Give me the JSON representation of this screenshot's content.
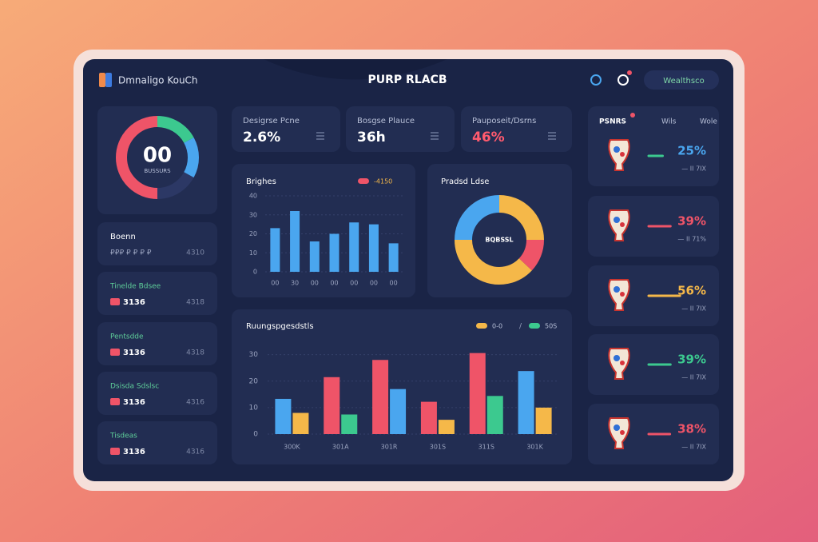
{
  "header": {
    "brand": "Dmnaligo KouCh",
    "title": "PURP RLACB",
    "badge": "Wealthsco"
  },
  "stats": [
    {
      "label": "Desigrse Pcne",
      "value": "2.6%",
      "value_color": "#ffffff"
    },
    {
      "label": "Bosgse Plauce",
      "value": "36h",
      "value_color": "#ffffff"
    },
    {
      "label": "Pauposeit/Dsrns",
      "value": "46%",
      "value_color": "#ff5a6e"
    }
  ],
  "side_cards": [
    {
      "title": "Boenn",
      "value": "₽₽₽ ₽ ₽ ₽ ₽",
      "note": "4310",
      "title_color": "#ffffff"
    },
    {
      "title": "Tinelde Bdsee",
      "value": "3136",
      "note": "4318",
      "title_color": "#5fcf9a"
    },
    {
      "title": "Pentsdde",
      "value": "3136",
      "note": "4318",
      "title_color": "#5fcf9a"
    },
    {
      "title": "Dsisda Sdslsc",
      "value": "3136",
      "note": "4316",
      "title_color": "#5fcf9a"
    },
    {
      "title": "Tisdeas",
      "value": "3136",
      "note": "4316",
      "title_color": "#5fcf9a"
    }
  ],
  "chart_data": [
    {
      "type": "gauge",
      "value_label": "00",
      "caption": "BUSSURS",
      "range": [
        0,
        100
      ],
      "values": [
        50,
        17,
        16
      ],
      "colors": [
        "#ef5468",
        "#3cc98f",
        "#4aa6ef"
      ]
    },
    {
      "type": "bar",
      "title": "Brighes",
      "legend_label": "-4150",
      "legend_color": "#ef5468",
      "categories": [
        "00",
        "30",
        "00",
        "00",
        "00",
        "00",
        "00"
      ],
      "values": [
        23,
        32,
        16,
        20,
        26,
        25,
        15
      ],
      "color": "#4aa6ef",
      "ylim": [
        0,
        40
      ],
      "yticks": [
        0,
        10,
        20,
        30,
        40
      ],
      "grid": true
    },
    {
      "type": "donut",
      "title": "Pradsd Ldse",
      "center_label": "BQBSSL",
      "values": [
        25,
        12,
        38,
        25
      ],
      "colors": [
        "#f5b849",
        "#ef5468",
        "#f5b849",
        "#4aa6ef"
      ]
    },
    {
      "type": "grouped_bar",
      "title": "Ruungspgesdstls",
      "legend_separator": "/",
      "categories": [
        "300K",
        "301A",
        "301R",
        "301S",
        "311S",
        "301K"
      ],
      "series": [
        {
          "name": "0-0",
          "color": "#f5b849",
          "values": [
            8,
            7.4,
            17,
            5.4,
            14.4,
            10
          ],
          "colors": [
            "#f5b849",
            "#3cc98f",
            "#4aa6ef",
            "#f5b849",
            "#3cc98f",
            "#f5b849"
          ]
        },
        {
          "name": "50S",
          "color": "#3cc98f",
          "values": [
            13.3,
            21.5,
            28,
            12.2,
            30.6,
            23.8
          ],
          "colors": [
            "#4aa6ef",
            "#ef5468",
            "#ef5468",
            "#ef5468",
            "#ef5468",
            "#4aa6ef"
          ]
        }
      ],
      "ylim": [
        0,
        32
      ],
      "yticks": [
        0,
        10,
        20,
        30
      ],
      "grid": true
    }
  ],
  "leaders": {
    "header": [
      "PSNRS",
      "Wils",
      "Wole"
    ],
    "rows": [
      {
        "value": 25,
        "label": "25%",
        "color": "#4aa6ef",
        "bar_color": "#3cc98f",
        "sub": "— II 7IX"
      },
      {
        "value": 39,
        "label": "39%",
        "color": "#ef5468",
        "bar_color": "#ef5468",
        "sub": "— II 71%"
      },
      {
        "value": 56,
        "label": "56%",
        "color": "#f5b849",
        "bar_color": "#f5b849",
        "sub": "— II 7IX"
      },
      {
        "value": 39,
        "label": "39%",
        "color": "#3cc98f",
        "bar_color": "#3cc98f",
        "sub": "— II 7IX"
      },
      {
        "value": 38,
        "label": "38%",
        "color": "#ef5468",
        "bar_color": "#ef5468",
        "sub": "— II 7IX"
      }
    ]
  }
}
